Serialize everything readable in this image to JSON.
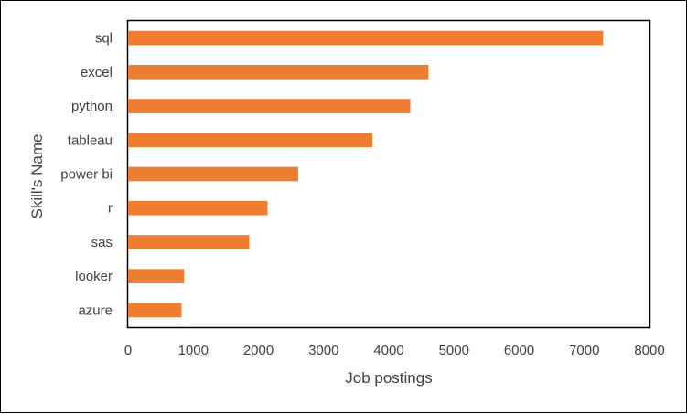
{
  "chart_data": {
    "type": "bar",
    "orientation": "horizontal",
    "categories": [
      "sql",
      "excel",
      "python",
      "tableau",
      "power bi",
      "r",
      "sas",
      "looker",
      "azure"
    ],
    "values": [
      7290,
      4610,
      4330,
      3750,
      2610,
      2140,
      1860,
      860,
      820
    ],
    "xlabel": "Job postings",
    "ylabel": "Skill's Name",
    "xlim": [
      0,
      8000
    ],
    "xticks": [
      "0",
      "1000",
      "2000",
      "3000",
      "4000",
      "5000",
      "6000",
      "7000",
      "8000"
    ],
    "grid": false,
    "legend": "none",
    "bar_color": "#ED7D31",
    "plot_border_color": "#000000"
  }
}
